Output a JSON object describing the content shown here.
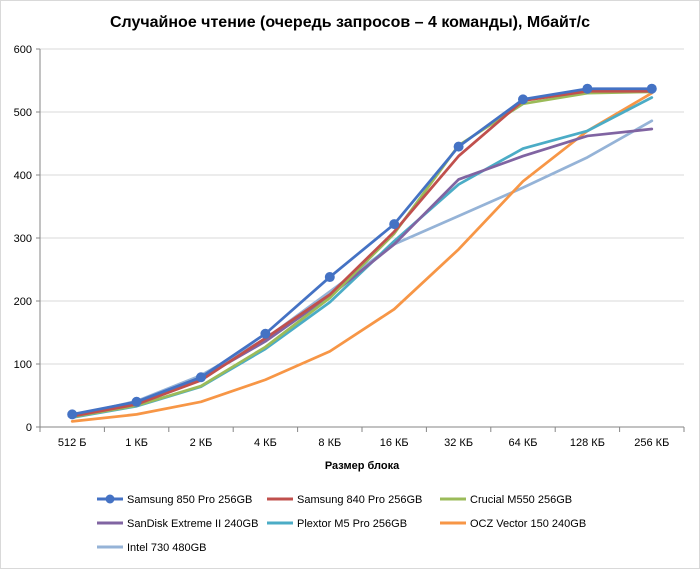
{
  "chart_data": {
    "type": "line",
    "title": "Случайное чтение (очередь запросов – 4 команды), Мбайт/с",
    "xlabel": "Размер блока",
    "ylabel": "",
    "categories": [
      "512 Б",
      "1 КБ",
      "2 КБ",
      "4 КБ",
      "8 КБ",
      "16 КБ",
      "32 КБ",
      "64 КБ",
      "128 КБ",
      "256 КБ"
    ],
    "ylim": [
      0,
      600
    ],
    "yticks": [
      0,
      100,
      200,
      300,
      400,
      500,
      600
    ],
    "grid": "horizontal",
    "legend_position": "bottom",
    "series": [
      {
        "name": "Samsung 850 Pro 256GB",
        "color": "#4472c4",
        "marker": "circle",
        "values": [
          20,
          40,
          79,
          148,
          238,
          322,
          445,
          520,
          537,
          537
        ]
      },
      {
        "name": "Samsung 840 Pro 256GB",
        "color": "#c0504d",
        "marker": "none",
        "values": [
          17,
          36,
          74,
          141,
          210,
          310,
          430,
          518,
          533,
          533
        ]
      },
      {
        "name": "Crucial M550 256GB",
        "color": "#9bbb59",
        "marker": "none",
        "values": [
          16,
          34,
          65,
          127,
          205,
          307,
          447,
          513,
          530,
          532
        ]
      },
      {
        "name": "SanDisk Extreme II 240GB",
        "color": "#8064a2",
        "marker": "none",
        "values": [
          17,
          37,
          77,
          136,
          208,
          290,
          393,
          430,
          462,
          473
        ]
      },
      {
        "name": "Plextor M5 Pro 256GB",
        "color": "#4bacc6",
        "marker": "none",
        "values": [
          15,
          33,
          64,
          124,
          198,
          295,
          385,
          442,
          470,
          523
        ]
      },
      {
        "name": "OCZ Vector 150 240GB",
        "color": "#f79646",
        "marker": "none",
        "values": [
          9,
          20,
          40,
          75,
          120,
          187,
          282,
          390,
          470,
          530
        ]
      },
      {
        "name": "Intel 730 480GB",
        "color": "#95b3d7",
        "marker": "none",
        "values": [
          18,
          41,
          82,
          140,
          215,
          290,
          335,
          380,
          428,
          486
        ]
      }
    ]
  }
}
